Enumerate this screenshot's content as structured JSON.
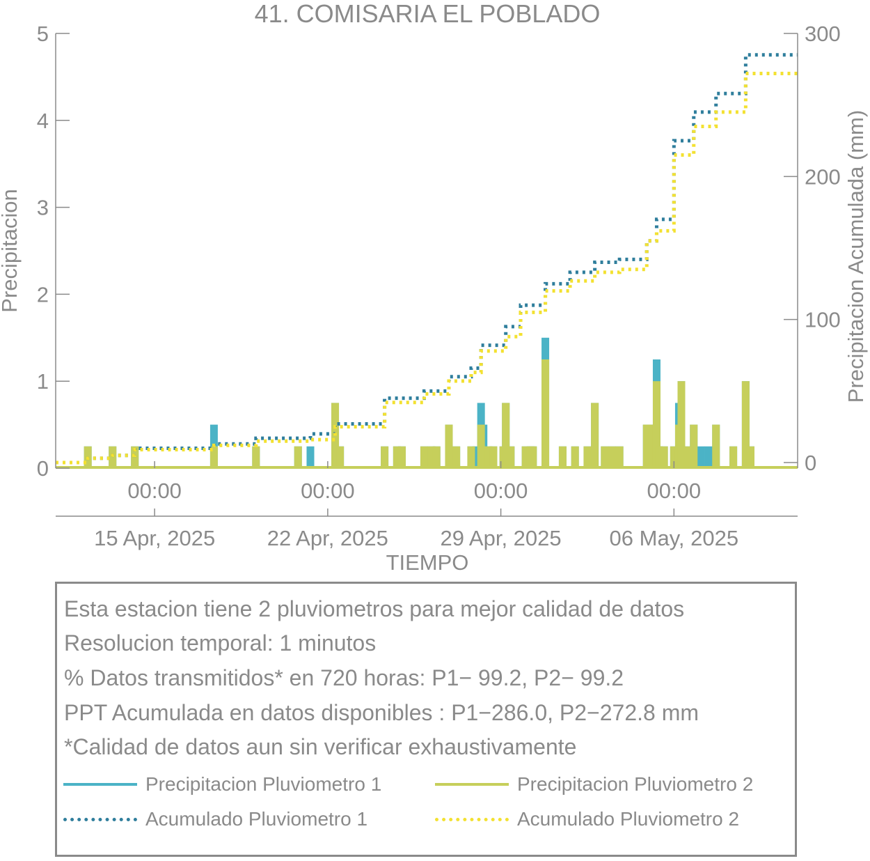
{
  "colors": {
    "p1": "#4bb3c6",
    "p2": "#c6cf5b",
    "acc1": "#2f7e9c",
    "acc2": "#f3e131",
    "axis": "#8a8a8a",
    "text": "#8a8a8a"
  },
  "info": {
    "lines": [
      "Esta estacion tiene 2 pluviometros para mejor calidad de datos",
      "Resolucion temporal: 1 minutos",
      "% Datos transmitidos* en 720 horas: P1− 99.2, P2− 99.2",
      "PPT Acumulada en datos disponibles : P1−286.0, P2−272.8 mm",
      "*Calidad de datos aun sin verificar exhaustivamente"
    ]
  },
  "legend": {
    "p1": "Precipitacion Pluviometro 1",
    "p2": "Precipitacion Pluviometro 2",
    "acc1": "Acumulado Pluviometro 1",
    "acc2": "Acumulado Pluviometro 2"
  },
  "chart_data": {
    "type": "bar",
    "title": "41. COMISARIA EL POBLADO",
    "xlabel": "TIEMPO",
    "ylabel": "Precipitacion",
    "y2label": "Precipitacion Acumulada (mm)",
    "ylim": [
      0,
      5
    ],
    "y2lim": [
      0,
      300
    ],
    "yticks": [
      0,
      1,
      2,
      3,
      4,
      5
    ],
    "y2ticks": [
      0,
      100,
      200,
      300
    ],
    "x_unit": "days since 2025-04-11 00:00",
    "xlim": [
      0,
      30
    ],
    "xticks": [
      {
        "x": 4,
        "time": "00:00",
        "date": "15 Apr, 2025"
      },
      {
        "x": 11,
        "time": "00:00",
        "date": "22 Apr, 2025"
      },
      {
        "x": 18,
        "time": "00:00",
        "date": "29 Apr, 2025"
      },
      {
        "x": 25,
        "time": "00:00",
        "date": "06 May, 2025"
      }
    ],
    "grid": false,
    "legend_position": "below",
    "series": [
      {
        "name": "Precipitacion Pluviometro 1",
        "kind": "bar",
        "axis": "left",
        "points": [
          [
            1.3,
            0.25
          ],
          [
            2.3,
            0.25
          ],
          [
            3.2,
            0.25
          ],
          [
            6.4,
            0.5
          ],
          [
            8.1,
            0.25
          ],
          [
            9.8,
            0.25
          ],
          [
            10.3,
            0.25
          ],
          [
            11.3,
            0.75
          ],
          [
            11.5,
            0.25
          ],
          [
            13.3,
            0.25
          ],
          [
            13.8,
            0.25
          ],
          [
            14.0,
            0.25
          ],
          [
            14.9,
            0.25
          ],
          [
            15.2,
            0.25
          ],
          [
            15.4,
            0.25
          ],
          [
            15.9,
            0.5
          ],
          [
            16.2,
            0.25
          ],
          [
            16.8,
            0.25
          ],
          [
            17.0,
            0.25
          ],
          [
            17.2,
            0.75
          ],
          [
            17.3,
            0.5
          ],
          [
            17.5,
            0.25
          ],
          [
            17.7,
            0.25
          ],
          [
            18.1,
            0.25
          ],
          [
            18.2,
            0.75
          ],
          [
            18.4,
            0.25
          ],
          [
            19.0,
            0.25
          ],
          [
            19.2,
            0.25
          ],
          [
            19.3,
            0.25
          ],
          [
            19.8,
            1.5
          ],
          [
            20.5,
            0.25
          ],
          [
            21.0,
            0.25
          ],
          [
            21.5,
            0.25
          ],
          [
            21.8,
            0.75
          ],
          [
            22.2,
            0.25
          ],
          [
            22.5,
            0.25
          ],
          [
            22.8,
            0.25
          ],
          [
            23.9,
            0.5
          ],
          [
            24.1,
            0.5
          ],
          [
            24.3,
            1.25
          ],
          [
            24.4,
            0.25
          ],
          [
            24.6,
            0.25
          ],
          [
            25.0,
            0.25
          ],
          [
            25.2,
            0.75
          ],
          [
            25.3,
            1.0
          ],
          [
            25.5,
            0.25
          ],
          [
            25.8,
            0.5
          ],
          [
            26.1,
            0.25
          ],
          [
            26.4,
            0.25
          ],
          [
            26.7,
            0.5
          ],
          [
            27.4,
            0.25
          ],
          [
            27.9,
            1.0
          ],
          [
            28.1,
            0.25
          ]
        ]
      },
      {
        "name": "Precipitacion Pluviometro 2",
        "kind": "bar",
        "axis": "left",
        "points": [
          [
            1.3,
            0.25
          ],
          [
            2.3,
            0.25
          ],
          [
            3.2,
            0.25
          ],
          [
            6.4,
            0.25
          ],
          [
            8.1,
            0.25
          ],
          [
            9.8,
            0.25
          ],
          [
            11.3,
            0.75
          ],
          [
            11.5,
            0.25
          ],
          [
            13.3,
            0.25
          ],
          [
            13.8,
            0.25
          ],
          [
            14.0,
            0.25
          ],
          [
            14.9,
            0.25
          ],
          [
            15.2,
            0.25
          ],
          [
            15.4,
            0.25
          ],
          [
            15.9,
            0.5
          ],
          [
            16.2,
            0.25
          ],
          [
            16.8,
            0.25
          ],
          [
            17.2,
            0.5
          ],
          [
            17.3,
            0.25
          ],
          [
            17.5,
            0.25
          ],
          [
            17.7,
            0.25
          ],
          [
            18.1,
            0.25
          ],
          [
            18.2,
            0.75
          ],
          [
            18.4,
            0.25
          ],
          [
            19.0,
            0.25
          ],
          [
            19.2,
            0.25
          ],
          [
            19.3,
            0.25
          ],
          [
            19.8,
            1.25
          ],
          [
            20.5,
            0.25
          ],
          [
            21.0,
            0.25
          ],
          [
            21.5,
            0.25
          ],
          [
            21.8,
            0.75
          ],
          [
            22.2,
            0.25
          ],
          [
            22.5,
            0.25
          ],
          [
            22.8,
            0.25
          ],
          [
            23.9,
            0.5
          ],
          [
            24.1,
            0.5
          ],
          [
            24.3,
            1.0
          ],
          [
            24.4,
            0.25
          ],
          [
            24.6,
            0.25
          ],
          [
            25.0,
            0.25
          ],
          [
            25.2,
            0.5
          ],
          [
            25.3,
            1.0
          ],
          [
            25.5,
            0.25
          ],
          [
            25.8,
            0.5
          ],
          [
            26.7,
            0.5
          ],
          [
            27.4,
            0.25
          ],
          [
            27.9,
            1.0
          ],
          [
            28.1,
            0.25
          ]
        ]
      },
      {
        "name": "Acumulado Pluviometro 1",
        "kind": "step",
        "axis": "right",
        "points": [
          [
            0,
            0
          ],
          [
            1.3,
            3
          ],
          [
            2.3,
            5
          ],
          [
            3.2,
            10
          ],
          [
            6.4,
            13
          ],
          [
            8.1,
            17
          ],
          [
            10.3,
            20
          ],
          [
            11.3,
            27
          ],
          [
            13.3,
            45
          ],
          [
            14.9,
            50
          ],
          [
            15.9,
            60
          ],
          [
            16.8,
            66
          ],
          [
            17.2,
            82
          ],
          [
            18.2,
            95
          ],
          [
            18.8,
            110
          ],
          [
            19.8,
            125
          ],
          [
            20.8,
            133
          ],
          [
            21.8,
            140
          ],
          [
            22.8,
            142
          ],
          [
            23.9,
            155
          ],
          [
            24.3,
            170
          ],
          [
            25.0,
            225
          ],
          [
            25.8,
            245
          ],
          [
            26.7,
            258
          ],
          [
            27.9,
            285
          ],
          [
            30,
            285
          ]
        ]
      },
      {
        "name": "Acumulado Pluviometro 2",
        "kind": "step",
        "axis": "right",
        "points": [
          [
            0,
            0
          ],
          [
            1.3,
            3
          ],
          [
            2.3,
            5
          ],
          [
            3.2,
            9
          ],
          [
            6.4,
            12
          ],
          [
            8.1,
            15
          ],
          [
            10.3,
            16
          ],
          [
            11.3,
            25
          ],
          [
            13.3,
            42
          ],
          [
            14.9,
            48
          ],
          [
            15.9,
            57
          ],
          [
            16.8,
            63
          ],
          [
            17.2,
            78
          ],
          [
            18.2,
            88
          ],
          [
            18.8,
            105
          ],
          [
            19.8,
            120
          ],
          [
            20.8,
            127
          ],
          [
            21.8,
            133
          ],
          [
            22.8,
            135
          ],
          [
            23.9,
            155
          ],
          [
            24.3,
            162
          ],
          [
            25.0,
            215
          ],
          [
            25.8,
            235
          ],
          [
            26.7,
            245
          ],
          [
            27.9,
            272
          ],
          [
            30,
            272
          ]
        ]
      }
    ]
  }
}
